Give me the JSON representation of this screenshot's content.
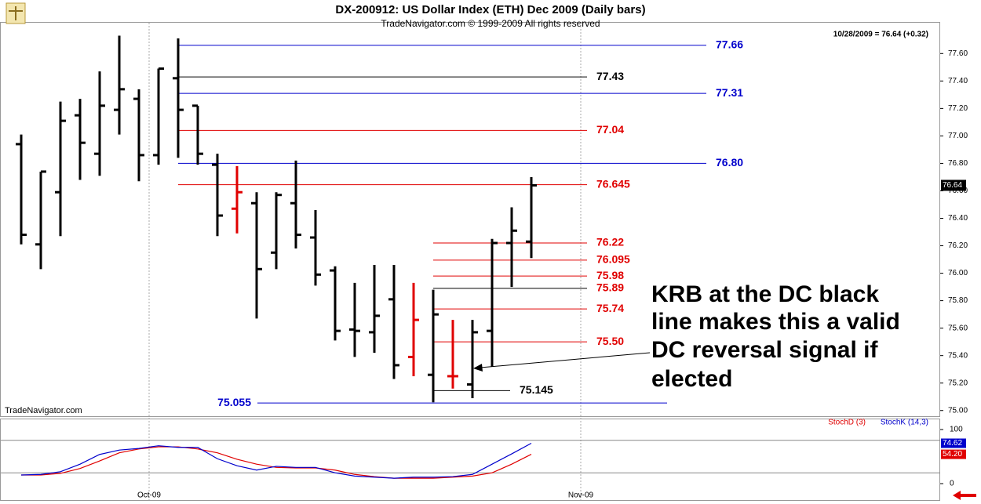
{
  "chart_data": [
    {
      "type": "ohlc",
      "title": "DX-200912:  US Dollar Index (ETH) Dec 2009  (Daily bars)",
      "subtitle": "TradeNavigator.com © 1999-2009 All rights reserved",
      "info": "10/28/2009 = 76.64 (+0.32)",
      "watermark": "TradeNavigator.com",
      "x": [
        0,
        1,
        2,
        3,
        4,
        5,
        6,
        7,
        8,
        9,
        10,
        11,
        12,
        13,
        14,
        15,
        16,
        17,
        18,
        19,
        20,
        21,
        22,
        23,
        24,
        25,
        26
      ],
      "open": [
        76.94,
        76.21,
        76.59,
        77.15,
        76.87,
        77.19,
        77.27,
        76.86,
        77.42,
        77.22,
        76.79,
        76.47,
        76.51,
        76.15,
        76.51,
        76.26,
        76.02,
        75.59,
        75.57,
        75.81,
        75.39,
        75.26,
        75.25,
        75.19,
        75.58,
        76.22,
        76.23
      ],
      "high": [
        77.01,
        76.74,
        77.25,
        77.27,
        77.47,
        77.73,
        77.34,
        77.49,
        77.71,
        77.22,
        76.87,
        76.78,
        76.59,
        76.59,
        76.82,
        76.46,
        76.05,
        75.93,
        76.06,
        76.06,
        75.93,
        75.88,
        75.66,
        75.66,
        76.25,
        76.48,
        76.7
      ],
      "low": [
        76.21,
        76.03,
        76.27,
        76.68,
        76.71,
        77.01,
        76.67,
        76.79,
        76.84,
        76.79,
        76.27,
        76.29,
        75.67,
        76.03,
        76.18,
        75.91,
        75.51,
        75.39,
        75.42,
        75.23,
        75.25,
        75.06,
        75.16,
        75.09,
        75.32,
        75.9,
        76.11
      ],
      "close": [
        76.28,
        76.74,
        77.11,
        76.95,
        77.22,
        77.34,
        76.86,
        77.49,
        77.19,
        76.87,
        76.42,
        76.59,
        76.03,
        76.57,
        76.28,
        75.99,
        75.58,
        75.58,
        75.69,
        75.33,
        75.66,
        75.7,
        75.25,
        75.57,
        76.22,
        76.31,
        76.64
      ],
      "colors": [
        "#000000",
        "#000000",
        "#000000",
        "#000000",
        "#000000",
        "#000000",
        "#000000",
        "#000000",
        "#000000",
        "#000000",
        "#000000",
        "#e00000",
        "#000000",
        "#000000",
        "#000000",
        "#000000",
        "#000000",
        "#000000",
        "#000000",
        "#000000",
        "#e00000",
        "#000000",
        "#e00000",
        "#000000",
        "#000000",
        "#000000",
        "#000000"
      ],
      "last_price": 76.64,
      "xlim": [
        -1.08,
        46.84
      ],
      "xticks": [
        {
          "value": 6.52,
          "label": "Oct-09"
        },
        {
          "value": 28.52,
          "label": "Nov-09"
        }
      ],
      "ylim": [
        74.97,
        77.83
      ],
      "yticks": [
        {
          "value": 75.0,
          "label": "75.00"
        },
        {
          "value": 75.2,
          "label": "75.20"
        },
        {
          "value": 75.4,
          "label": "75.40"
        },
        {
          "value": 75.6,
          "label": "75.60"
        },
        {
          "value": 75.8,
          "label": "75.80"
        },
        {
          "value": 76.0,
          "label": "76.00"
        },
        {
          "value": 76.2,
          "label": "76.20"
        },
        {
          "value": 76.4,
          "label": "76.40"
        },
        {
          "value": 76.6,
          "label": "76.60"
        },
        {
          "value": 76.8,
          "label": "76.80"
        },
        {
          "value": 77.0,
          "label": "77.00"
        },
        {
          "value": 77.2,
          "label": "77.20"
        },
        {
          "value": 77.4,
          "label": "77.40"
        },
        {
          "value": 77.6,
          "label": "77.60"
        }
      ],
      "levels": [
        {
          "value": 77.66,
          "label": "77.66",
          "color": "#0000cc",
          "label_color": "#0000cc",
          "start": 8,
          "end": 34.92,
          "label_side": "right"
        },
        {
          "value": 77.43,
          "label": "77.43",
          "color": "#000000",
          "label_color": "#000000",
          "start": 8,
          "end": 28.84,
          "label_side": "right"
        },
        {
          "value": 77.31,
          "label": "77.31",
          "color": "#0000cc",
          "label_color": "#0000cc",
          "start": 8,
          "end": 34.92,
          "label_side": "right"
        },
        {
          "value": 77.04,
          "label": "77.04",
          "color": "#e00000",
          "label_color": "#e00000",
          "start": 8,
          "end": 28.84,
          "label_side": "right"
        },
        {
          "value": 76.8,
          "label": "76.80",
          "color": "#0000cc",
          "label_color": "#0000cc",
          "start": 8,
          "end": 34.92,
          "label_side": "right"
        },
        {
          "value": 76.645,
          "label": "76.645",
          "color": "#e00000",
          "label_color": "#e00000",
          "start": 8,
          "end": 28.84,
          "label_side": "right"
        },
        {
          "value": 76.22,
          "label": "76.22",
          "color": "#e00000",
          "label_color": "#e00000",
          "start": 21,
          "end": 28.84,
          "label_side": "right"
        },
        {
          "value": 76.095,
          "label": "76.095",
          "color": "#e00000",
          "label_color": "#e00000",
          "start": 21,
          "end": 28.84,
          "label_side": "right"
        },
        {
          "value": 75.98,
          "label": "75.98",
          "color": "#e00000",
          "label_color": "#e00000",
          "start": 21,
          "end": 28.84,
          "label_side": "right"
        },
        {
          "value": 75.89,
          "label": "75.89",
          "color": "#000000",
          "label_color": "#e00000",
          "start": 21,
          "end": 28.84,
          "label_side": "right"
        },
        {
          "value": 75.74,
          "label": "75.74",
          "color": "#e00000",
          "label_color": "#e00000",
          "start": 21,
          "end": 28.84,
          "label_side": "right"
        },
        {
          "value": 75.5,
          "label": "75.50",
          "color": "#e00000",
          "label_color": "#e00000",
          "start": 21,
          "end": 28.84,
          "label_side": "right"
        },
        {
          "value": 75.145,
          "label": "75.145",
          "color": "#000000",
          "label_color": "#000000",
          "start": 21,
          "end": 24.92,
          "label_side": "right"
        },
        {
          "value": 75.055,
          "label": "75.055",
          "color": "#0000cc",
          "label_color": "#0000cc",
          "start": 12.04,
          "end": 32.92,
          "label_side": "left"
        }
      ],
      "annotation": {
        "lines": [
          "KRB at the DC black",
          "line makes this a valid",
          "DC reversal signal if",
          "elected"
        ]
      }
    },
    {
      "type": "line",
      "x": [
        0,
        1,
        2,
        3,
        4,
        5,
        6,
        7,
        8,
        9,
        10,
        11,
        12,
        13,
        14,
        15,
        16,
        17,
        18,
        19,
        20,
        21,
        22,
        23,
        24,
        25,
        26
      ],
      "xlim": [
        -1.08,
        46.84
      ],
      "series": [
        {
          "name": "StochD (3)",
          "color": "#e00000",
          "values": [
            16,
            16,
            19,
            28,
            42,
            57,
            64,
            68,
            68,
            64,
            57,
            45,
            36,
            30,
            29,
            29,
            25,
            17,
            13,
            10,
            10,
            10,
            12,
            14,
            20,
            36,
            54.2
          ],
          "value_labels": [
            null,
            null,
            null,
            null,
            null,
            null,
            null,
            null,
            null,
            null,
            null,
            null,
            null,
            null,
            null,
            null,
            null,
            null,
            null,
            null,
            null,
            null,
            null,
            null,
            null,
            null,
            "54.20"
          ]
        },
        {
          "name": "StochK (14,3)",
          "color": "#0000cc",
          "values": [
            16,
            17,
            22,
            36,
            54,
            62,
            65,
            70,
            67,
            67,
            46,
            33,
            25,
            32,
            30,
            30,
            20,
            14,
            12,
            10,
            12,
            12,
            13,
            17,
            36,
            55,
            74.62
          ],
          "value_labels": [
            null,
            null,
            null,
            null,
            null,
            null,
            null,
            null,
            null,
            null,
            null,
            null,
            null,
            null,
            null,
            null,
            null,
            null,
            null,
            null,
            null,
            null,
            null,
            null,
            null,
            null,
            "74.62"
          ]
        }
      ],
      "ylim": [
        -30.4,
        118.8
      ],
      "yticks": [
        0,
        100
      ],
      "levels": [
        20,
        80
      ]
    }
  ]
}
